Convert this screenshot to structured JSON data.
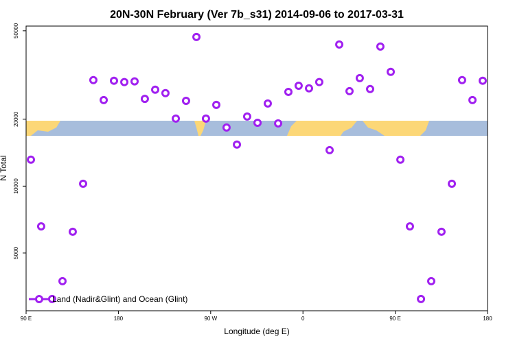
{
  "chart_data": {
    "type": "scatter",
    "title": "20N-30N February (Ver 7b_s31)   2014-09-06 to 2017-03-31",
    "x_label": "Longitude (deg E)",
    "y_label": "N Total",
    "y_log": true,
    "legend_position": "bottom-left",
    "xlim": [
      90,
      540
    ],
    "ylim": [
      2750,
      52500
    ],
    "xticks": [
      {
        "value": 90,
        "label": "90 E"
      },
      180,
      {
        "value": 270,
        "label": "90 W"
      },
      {
        "value": 360,
        "label": "0"
      },
      {
        "value": 450,
        "label": "90 E"
      },
      {
        "value": 540,
        "label": "180"
      }
    ],
    "yticks": [
      5000,
      10000,
      20000,
      50000
    ],
    "series": [
      {
        "name": "Land (Nadir&Glint) and Ocean (Glint)",
        "color": "#a020f0",
        "x": [
          94.7,
          104.7,
          115.4,
          125.5,
          135.5,
          145.6,
          155.6,
          165.7,
          175.7,
          185.8,
          195.8,
          205.8,
          215.9,
          225.9,
          236.0,
          246.0,
          256.1,
          265.4,
          275.5,
          285.5,
          295.6,
          305.6,
          315.7,
          325.7,
          335.8,
          345.8,
          355.8,
          365.9,
          375.9,
          386.0,
          395.4,
          405.4,
          415.4,
          425.5,
          435.5,
          445.6,
          455.0,
          464.3,
          475.1,
          485.1,
          495.1,
          505.2,
          515.2,
          525.3,
          535.3
        ],
        "values": [
          13150,
          6590,
          3105,
          3735,
          6235,
          10250,
          30000,
          24400,
          29800,
          29400,
          29600,
          24700,
          27150,
          26200,
          20130,
          24200,
          46900,
          20130,
          23200,
          18350,
          15380,
          20560,
          19280,
          23530,
          19150,
          26550,
          28300,
          27540,
          29400,
          14520,
          43360,
          26740,
          30620,
          27340,
          42470,
          32660,
          13150,
          6590,
          3105,
          3735,
          6235,
          10250,
          30000,
          24400,
          29800
        ]
      }
    ]
  }
}
